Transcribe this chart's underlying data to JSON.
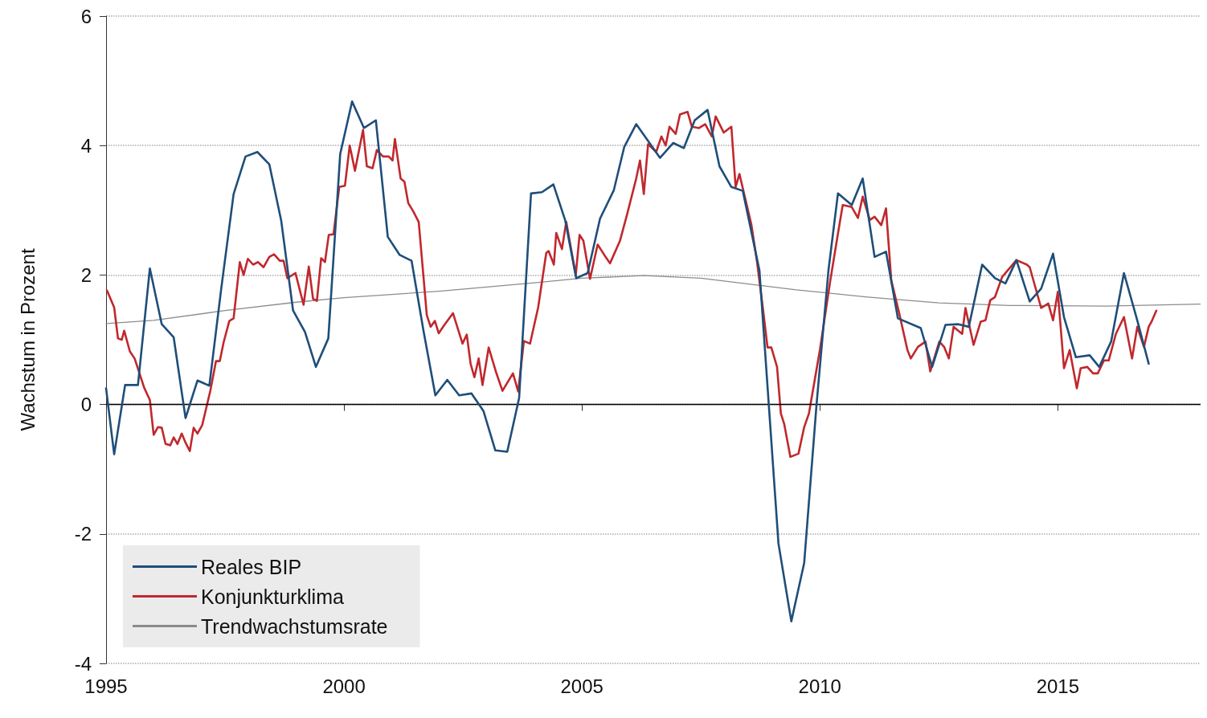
{
  "chart_data": {
    "type": "line",
    "ylabel": "Wachstum in Prozent",
    "xlim": [
      1995,
      2018
    ],
    "xticks": [
      1995,
      2000,
      2005,
      2010,
      2015
    ],
    "ylim": [
      -4,
      6
    ],
    "yticks": [
      -4,
      -2,
      0,
      2,
      4,
      6
    ],
    "grid": "y",
    "legend": "bottom left",
    "marker": "none",
    "line_style": "solid",
    "ref_lines": [
      {
        "axis": "y",
        "value": 0,
        "label": null,
        "color": "#000000"
      }
    ],
    "series": [
      {
        "name": "Reales BIP",
        "color": "#1f4e79",
        "x": [
          1995.0,
          1995.17,
          1995.4,
          1995.67,
          1995.92,
          1996.17,
          1996.42,
          1996.67,
          1996.92,
          1997.17,
          1997.42,
          1997.68,
          1997.93,
          1998.18,
          1998.43,
          1998.68,
          1998.93,
          1999.18,
          1999.41,
          1999.67,
          1999.92,
          2000.17,
          2000.42,
          2000.67,
          2000.92,
          2001.17,
          2001.42,
          2001.67,
          2001.92,
          2002.17,
          2002.42,
          2002.68,
          2002.93,
          2003.18,
          2003.43,
          2003.68,
          2003.93,
          2004.16,
          2004.4,
          2004.65,
          2004.88,
          2005.12,
          2005.38,
          2005.67,
          2005.89,
          2006.14,
          2006.64,
          2006.92,
          2007.14,
          2007.37,
          2007.64,
          2007.89,
          2008.14,
          2008.38,
          2008.73,
          2009.13,
          2009.4,
          2009.67,
          2009.93,
          2010.18,
          2010.38,
          2010.67,
          2010.9,
          2011.15,
          2011.39,
          2011.64,
          2012.12,
          2012.36,
          2012.64,
          2012.91,
          2013.13,
          2013.41,
          2013.68,
          2013.9,
          2014.13,
          2014.41,
          2014.65,
          2014.9,
          2015.13,
          2015.38,
          2015.67,
          2015.87,
          2016.12,
          2016.39,
          2016.67,
          2016.91
        ],
        "values": [
          0.25,
          -0.77,
          0.3,
          0.3,
          2.1,
          1.24,
          1.04,
          -0.21,
          0.37,
          0.29,
          1.79,
          3.25,
          3.83,
          3.9,
          3.71,
          2.84,
          1.45,
          1.12,
          0.58,
          1.02,
          3.87,
          4.68,
          4.27,
          4.39,
          2.59,
          2.31,
          2.22,
          1.14,
          0.14,
          0.38,
          0.14,
          0.17,
          -0.1,
          -0.71,
          -0.73,
          0.1,
          3.26,
          3.28,
          3.4,
          2.84,
          1.95,
          2.03,
          2.87,
          3.31,
          3.98,
          4.33,
          3.81,
          4.04,
          3.96,
          4.39,
          4.55,
          3.68,
          3.36,
          3.3,
          2.07,
          -2.15,
          -3.35,
          -2.45,
          0,
          2.07,
          3.26,
          3.08,
          3.49,
          2.28,
          2.36,
          1.33,
          1.18,
          0.58,
          1.23,
          1.24,
          1.2,
          2.16,
          1.95,
          1.87,
          2.23,
          1.59,
          1.79,
          2.33,
          1.35,
          0.73,
          0.76,
          0.58,
          0.97,
          2.03,
          1.3,
          0.63
        ]
      },
      {
        "name": "Konjunkturklima",
        "color": "#c0282d",
        "x": [
          1995.02,
          1995.17,
          1995.25,
          1995.33,
          1995.38,
          1995.5,
          1995.6,
          1995.8,
          1995.92,
          1996.0,
          1996.09,
          1996.17,
          1996.25,
          1996.35,
          1996.42,
          1996.5,
          1996.59,
          1996.67,
          1996.76,
          1996.84,
          1996.92,
          1997.02,
          1997.19,
          1997.31,
          1997.39,
          1997.47,
          1997.59,
          1997.68,
          1997.81,
          1997.89,
          1997.98,
          1998.09,
          1998.19,
          1998.31,
          1998.43,
          1998.53,
          1998.65,
          1998.73,
          1998.81,
          1998.98,
          1999.15,
          1999.26,
          1999.35,
          1999.43,
          1999.52,
          1999.6,
          1999.68,
          1999.78,
          1999.9,
          2000.02,
          2000.12,
          2000.23,
          2000.4,
          2000.48,
          2000.6,
          2000.69,
          2000.82,
          2000.94,
          2001.02,
          2001.07,
          2001.19,
          2001.27,
          2001.35,
          2001.45,
          2001.57,
          2001.74,
          2001.82,
          2001.91,
          2001.99,
          2002.11,
          2002.29,
          2002.49,
          2002.58,
          2002.66,
          2002.74,
          2002.83,
          2002.91,
          2003.04,
          2003.19,
          2003.33,
          2003.55,
          2003.66,
          2003.78,
          2003.91,
          2004.08,
          2004.25,
          2004.3,
          2004.41,
          2004.46,
          2004.58,
          2004.67,
          2004.87,
          2004.95,
          2005.03,
          2005.17,
          2005.33,
          2005.47,
          2005.59,
          2005.8,
          2005.95,
          2006.14,
          2006.22,
          2006.3,
          2006.39,
          2006.56,
          2006.67,
          2006.76,
          2006.84,
          2006.97,
          2007.06,
          2007.22,
          2007.31,
          2007.46,
          2007.59,
          2007.73,
          2007.81,
          2007.98,
          2008.14,
          2008.23,
          2008.31,
          2008.39,
          2008.56,
          2008.68,
          2008.8,
          2008.9,
          2008.98,
          2009.1,
          2009.18,
          2009.25,
          2009.38,
          2009.55,
          2009.67,
          2009.77,
          2010.0,
          2010.22,
          2010.38,
          2010.48,
          2010.67,
          2010.8,
          2010.9,
          2011.05,
          2011.15,
          2011.29,
          2011.39,
          2011.5,
          2011.67,
          2011.84,
          2011.91,
          2012.06,
          2012.22,
          2012.32,
          2012.51,
          2012.61,
          2012.71,
          2012.81,
          2012.99,
          2013.06,
          2013.23,
          2013.38,
          2013.48,
          2013.58,
          2013.68,
          2013.83,
          2014.13,
          2014.35,
          2014.41,
          2014.65,
          2014.8,
          2014.9,
          2015.0,
          2015.13,
          2015.25,
          2015.4,
          2015.48,
          2015.62,
          2015.74,
          2015.84,
          2015.97,
          2016.07,
          2016.22,
          2016.39,
          2016.56,
          2016.67,
          2016.81,
          2016.91,
          2016.97,
          2017.07
        ],
        "values": [
          1.76,
          1.5,
          1.02,
          1.0,
          1.14,
          0.82,
          0.71,
          0.26,
          0.07,
          -0.47,
          -0.35,
          -0.36,
          -0.61,
          -0.63,
          -0.51,
          -0.61,
          -0.45,
          -0.59,
          -0.72,
          -0.36,
          -0.45,
          -0.32,
          0.21,
          0.67,
          0.67,
          0.96,
          1.29,
          1.33,
          2.2,
          2.0,
          2.25,
          2.16,
          2.2,
          2.12,
          2.28,
          2.32,
          2.22,
          2.22,
          1.95,
          2.03,
          1.54,
          2.13,
          1.63,
          1.6,
          2.26,
          2.2,
          2.62,
          2.63,
          3.36,
          3.38,
          4.0,
          3.61,
          4.24,
          3.68,
          3.65,
          3.93,
          3.83,
          3.83,
          3.77,
          4.1,
          3.49,
          3.44,
          3.11,
          2.99,
          2.82,
          1.38,
          1.2,
          1.29,
          1.1,
          1.23,
          1.41,
          0.94,
          1.08,
          0.63,
          0.42,
          0.71,
          0.3,
          0.88,
          0.51,
          0.21,
          0.48,
          0.2,
          0.98,
          0.94,
          1.5,
          2.34,
          2.37,
          2.16,
          2.65,
          2.4,
          2.82,
          2.0,
          2.62,
          2.53,
          1.94,
          2.47,
          2.31,
          2.18,
          2.53,
          2.94,
          3.49,
          3.77,
          3.25,
          4.02,
          3.9,
          4.14,
          4.0,
          4.29,
          4.18,
          4.48,
          4.52,
          4.29,
          4.27,
          4.33,
          4.14,
          4.45,
          4.2,
          4.29,
          3.36,
          3.56,
          3.31,
          2.78,
          2.2,
          1.5,
          0.88,
          0.88,
          0.58,
          -0.14,
          -0.3,
          -0.81,
          -0.76,
          -0.35,
          -0.14,
          0.84,
          1.92,
          2.64,
          3.08,
          3.05,
          2.88,
          3.21,
          2.85,
          2.9,
          2.77,
          3.03,
          1.92,
          1.4,
          0.84,
          0.71,
          0.89,
          0.97,
          0.51,
          0.97,
          0.89,
          0.71,
          1.2,
          1.09,
          1.49,
          0.92,
          1.28,
          1.3,
          1.61,
          1.66,
          1.97,
          2.23,
          2.16,
          2.12,
          1.49,
          1.56,
          1.3,
          1.74,
          0.56,
          0.84,
          0.25,
          0.56,
          0.58,
          0.48,
          0.48,
          0.68,
          0.68,
          1.09,
          1.35,
          0.71,
          1.2,
          0.89,
          1.2,
          1.28,
          1.45
        ]
      },
      {
        "name": "Trendwachstumsrate",
        "color": "#8c8c8c",
        "x": [
          1995,
          1996,
          1997.5,
          1999,
          2000,
          2002,
          2004,
          2005,
          2006.3,
          2007.5,
          2008.5,
          2009.5,
          2011,
          2012.5,
          2014,
          2016,
          2018
        ],
        "values": [
          1.25,
          1.3,
          1.45,
          1.58,
          1.65,
          1.75,
          1.88,
          1.95,
          1.99,
          1.95,
          1.86,
          1.77,
          1.66,
          1.57,
          1.53,
          1.52,
          1.55
        ]
      }
    ]
  }
}
